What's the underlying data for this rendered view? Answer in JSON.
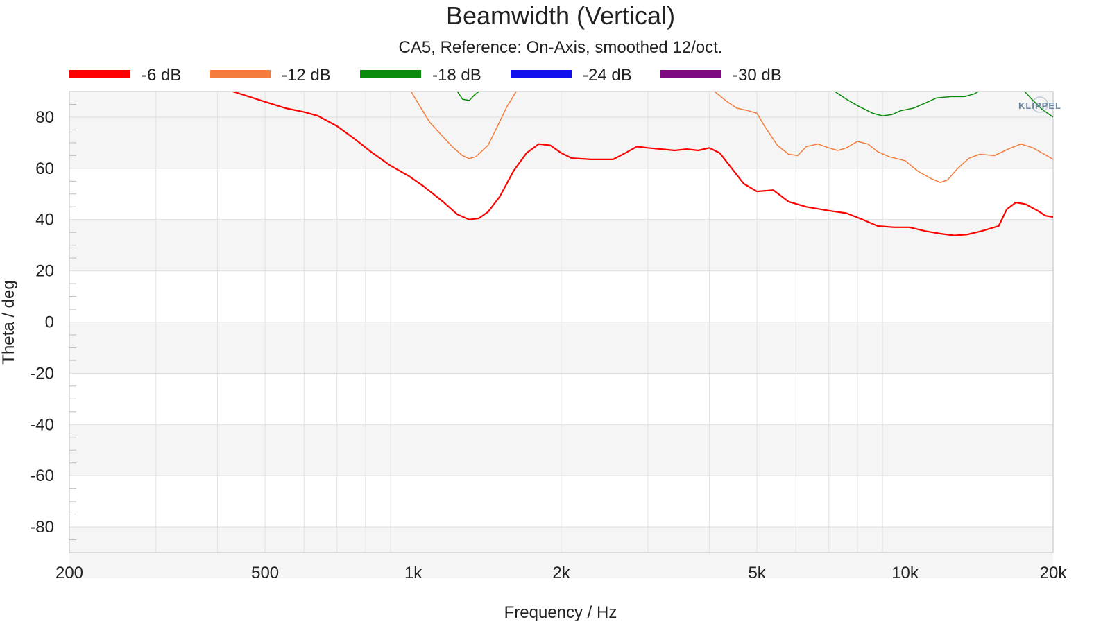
{
  "chart_data": {
    "type": "line",
    "title": "Beamwidth (Vertical)",
    "subtitle": "CA5, Reference: On-Axis, smoothed 12/oct.",
    "xlabel": "Frequency / Hz",
    "ylabel": "Theta / deg",
    "xscale": "log",
    "xlim": [
      200,
      20000
    ],
    "ylim": [
      -90,
      90
    ],
    "xticks": [
      200,
      500,
      1000,
      2000,
      5000,
      10000,
      20000
    ],
    "xtick_labels": [
      "200",
      "500",
      "1k",
      "2k",
      "5k",
      "10k",
      "20k"
    ],
    "yticks": [
      80,
      60,
      40,
      20,
      0,
      -20,
      -40,
      -60,
      -80
    ],
    "ytick_labels": [
      "80",
      "60",
      "40",
      "20",
      "0",
      "-20",
      "-40",
      "-60",
      "-80"
    ],
    "grid": true,
    "legend_position": "top",
    "logo_text": "KLIPPEL",
    "series": [
      {
        "name": "-6 dB",
        "color": "#ff0000",
        "width": 2.2,
        "segments": [
          [
            [
              430,
              90
            ],
            [
              500,
              86
            ],
            [
              550,
              83.5
            ],
            [
              600,
              82
            ],
            [
              640,
              80.5
            ],
            [
              700,
              76.5
            ],
            [
              760,
              71.5
            ],
            [
              820,
              66.5
            ],
            [
              900,
              61
            ],
            [
              980,
              57
            ],
            [
              1050,
              53
            ],
            [
              1150,
              47
            ],
            [
              1230,
              42
            ],
            [
              1300,
              40
            ],
            [
              1360,
              40.5
            ],
            [
              1420,
              43
            ],
            [
              1500,
              49
            ],
            [
              1600,
              59
            ],
            [
              1700,
              66
            ],
            [
              1800,
              69.5
            ],
            [
              1900,
              69
            ],
            [
              2000,
              66
            ],
            [
              2100,
              64
            ],
            [
              2300,
              63.5
            ],
            [
              2550,
              63.5
            ],
            [
              2700,
              66
            ],
            [
              2850,
              68.5
            ],
            [
              3000,
              68
            ],
            [
              3200,
              67.5
            ],
            [
              3400,
              67
            ],
            [
              3600,
              67.5
            ],
            [
              3800,
              67
            ],
            [
              4000,
              68
            ],
            [
              4200,
              66
            ],
            [
              4400,
              61
            ],
            [
              4700,
              54
            ],
            [
              5000,
              51
            ],
            [
              5400,
              51.5
            ],
            [
              5800,
              47
            ],
            [
              6300,
              45
            ],
            [
              7000,
              43.5
            ],
            [
              7600,
              42.5
            ],
            [
              8200,
              40
            ],
            [
              8800,
              37.5
            ],
            [
              9500,
              37
            ],
            [
              10200,
              37
            ],
            [
              11000,
              35.5
            ],
            [
              11800,
              34.5
            ],
            [
              12600,
              33.8
            ],
            [
              13400,
              34.2
            ],
            [
              14300,
              35.5
            ],
            [
              15500,
              37.5
            ],
            [
              16100,
              44
            ],
            [
              16800,
              46.7
            ],
            [
              17600,
              46
            ],
            [
              18600,
              43.5
            ],
            [
              19300,
              41.5
            ],
            [
              20000,
              41
            ]
          ]
        ]
      },
      {
        "name": "-12 dB",
        "color": "#f47c3c",
        "width": 1.5,
        "segments": [
          [
            [
              990,
              90
            ],
            [
              1080,
              78
            ],
            [
              1200,
              68.5
            ],
            [
              1260,
              65
            ],
            [
              1300,
              63.8
            ],
            [
              1340,
              64.5
            ],
            [
              1420,
              69
            ],
            [
              1480,
              76
            ],
            [
              1550,
              84
            ],
            [
              1620,
              90
            ]
          ],
          [
            [
              4100,
              90
            ],
            [
              4350,
              86
            ],
            [
              4550,
              83.5
            ],
            [
              4800,
              82.5
            ],
            [
              5000,
              81.5
            ],
            [
              5200,
              76
            ],
            [
              5500,
              69
            ],
            [
              5800,
              65.5
            ],
            [
              6050,
              65
            ],
            [
              6300,
              68.5
            ],
            [
              6650,
              69.5
            ],
            [
              7000,
              68
            ],
            [
              7300,
              67
            ],
            [
              7600,
              68
            ],
            [
              8000,
              70.5
            ],
            [
              8400,
              69.5
            ],
            [
              8800,
              66.5
            ],
            [
              9300,
              64.5
            ],
            [
              10000,
              63
            ],
            [
              10600,
              59
            ],
            [
              11300,
              56
            ],
            [
              11800,
              54.5
            ],
            [
              12200,
              55.5
            ],
            [
              12800,
              60
            ],
            [
              13500,
              64
            ],
            [
              14200,
              65.5
            ],
            [
              15200,
              65
            ],
            [
              16200,
              67.5
            ],
            [
              17200,
              69.5
            ],
            [
              18200,
              68
            ],
            [
              19200,
              65.5
            ],
            [
              20000,
              63.5
            ]
          ]
        ]
      },
      {
        "name": "-18 dB",
        "color": "#0a8a0a",
        "width": 1.5,
        "segments": [
          [
            [
              1230,
              90
            ],
            [
              1260,
              87
            ],
            [
              1300,
              86.5
            ],
            [
              1330,
              88.5
            ],
            [
              1360,
              90
            ]
          ],
          [
            [
              7200,
              90
            ],
            [
              7600,
              87
            ],
            [
              8000,
              84.5
            ],
            [
              8600,
              81.5
            ],
            [
              9000,
              80.5
            ],
            [
              9400,
              81
            ],
            [
              9800,
              82.5
            ],
            [
              10400,
              83.5
            ],
            [
              11000,
              85.5
            ],
            [
              11600,
              87.5
            ],
            [
              12400,
              88
            ],
            [
              13200,
              88
            ],
            [
              13800,
              89
            ],
            [
              14100,
              90
            ]
          ],
          [
            [
              17500,
              90
            ],
            [
              18100,
              87
            ],
            [
              19000,
              83
            ],
            [
              20000,
              80
            ]
          ]
        ]
      },
      {
        "name": "-24 dB",
        "color": "#1010ee",
        "width": 1.5,
        "segments": []
      },
      {
        "name": "-30 dB",
        "color": "#7d0a80",
        "width": 1.5,
        "segments": []
      }
    ]
  }
}
